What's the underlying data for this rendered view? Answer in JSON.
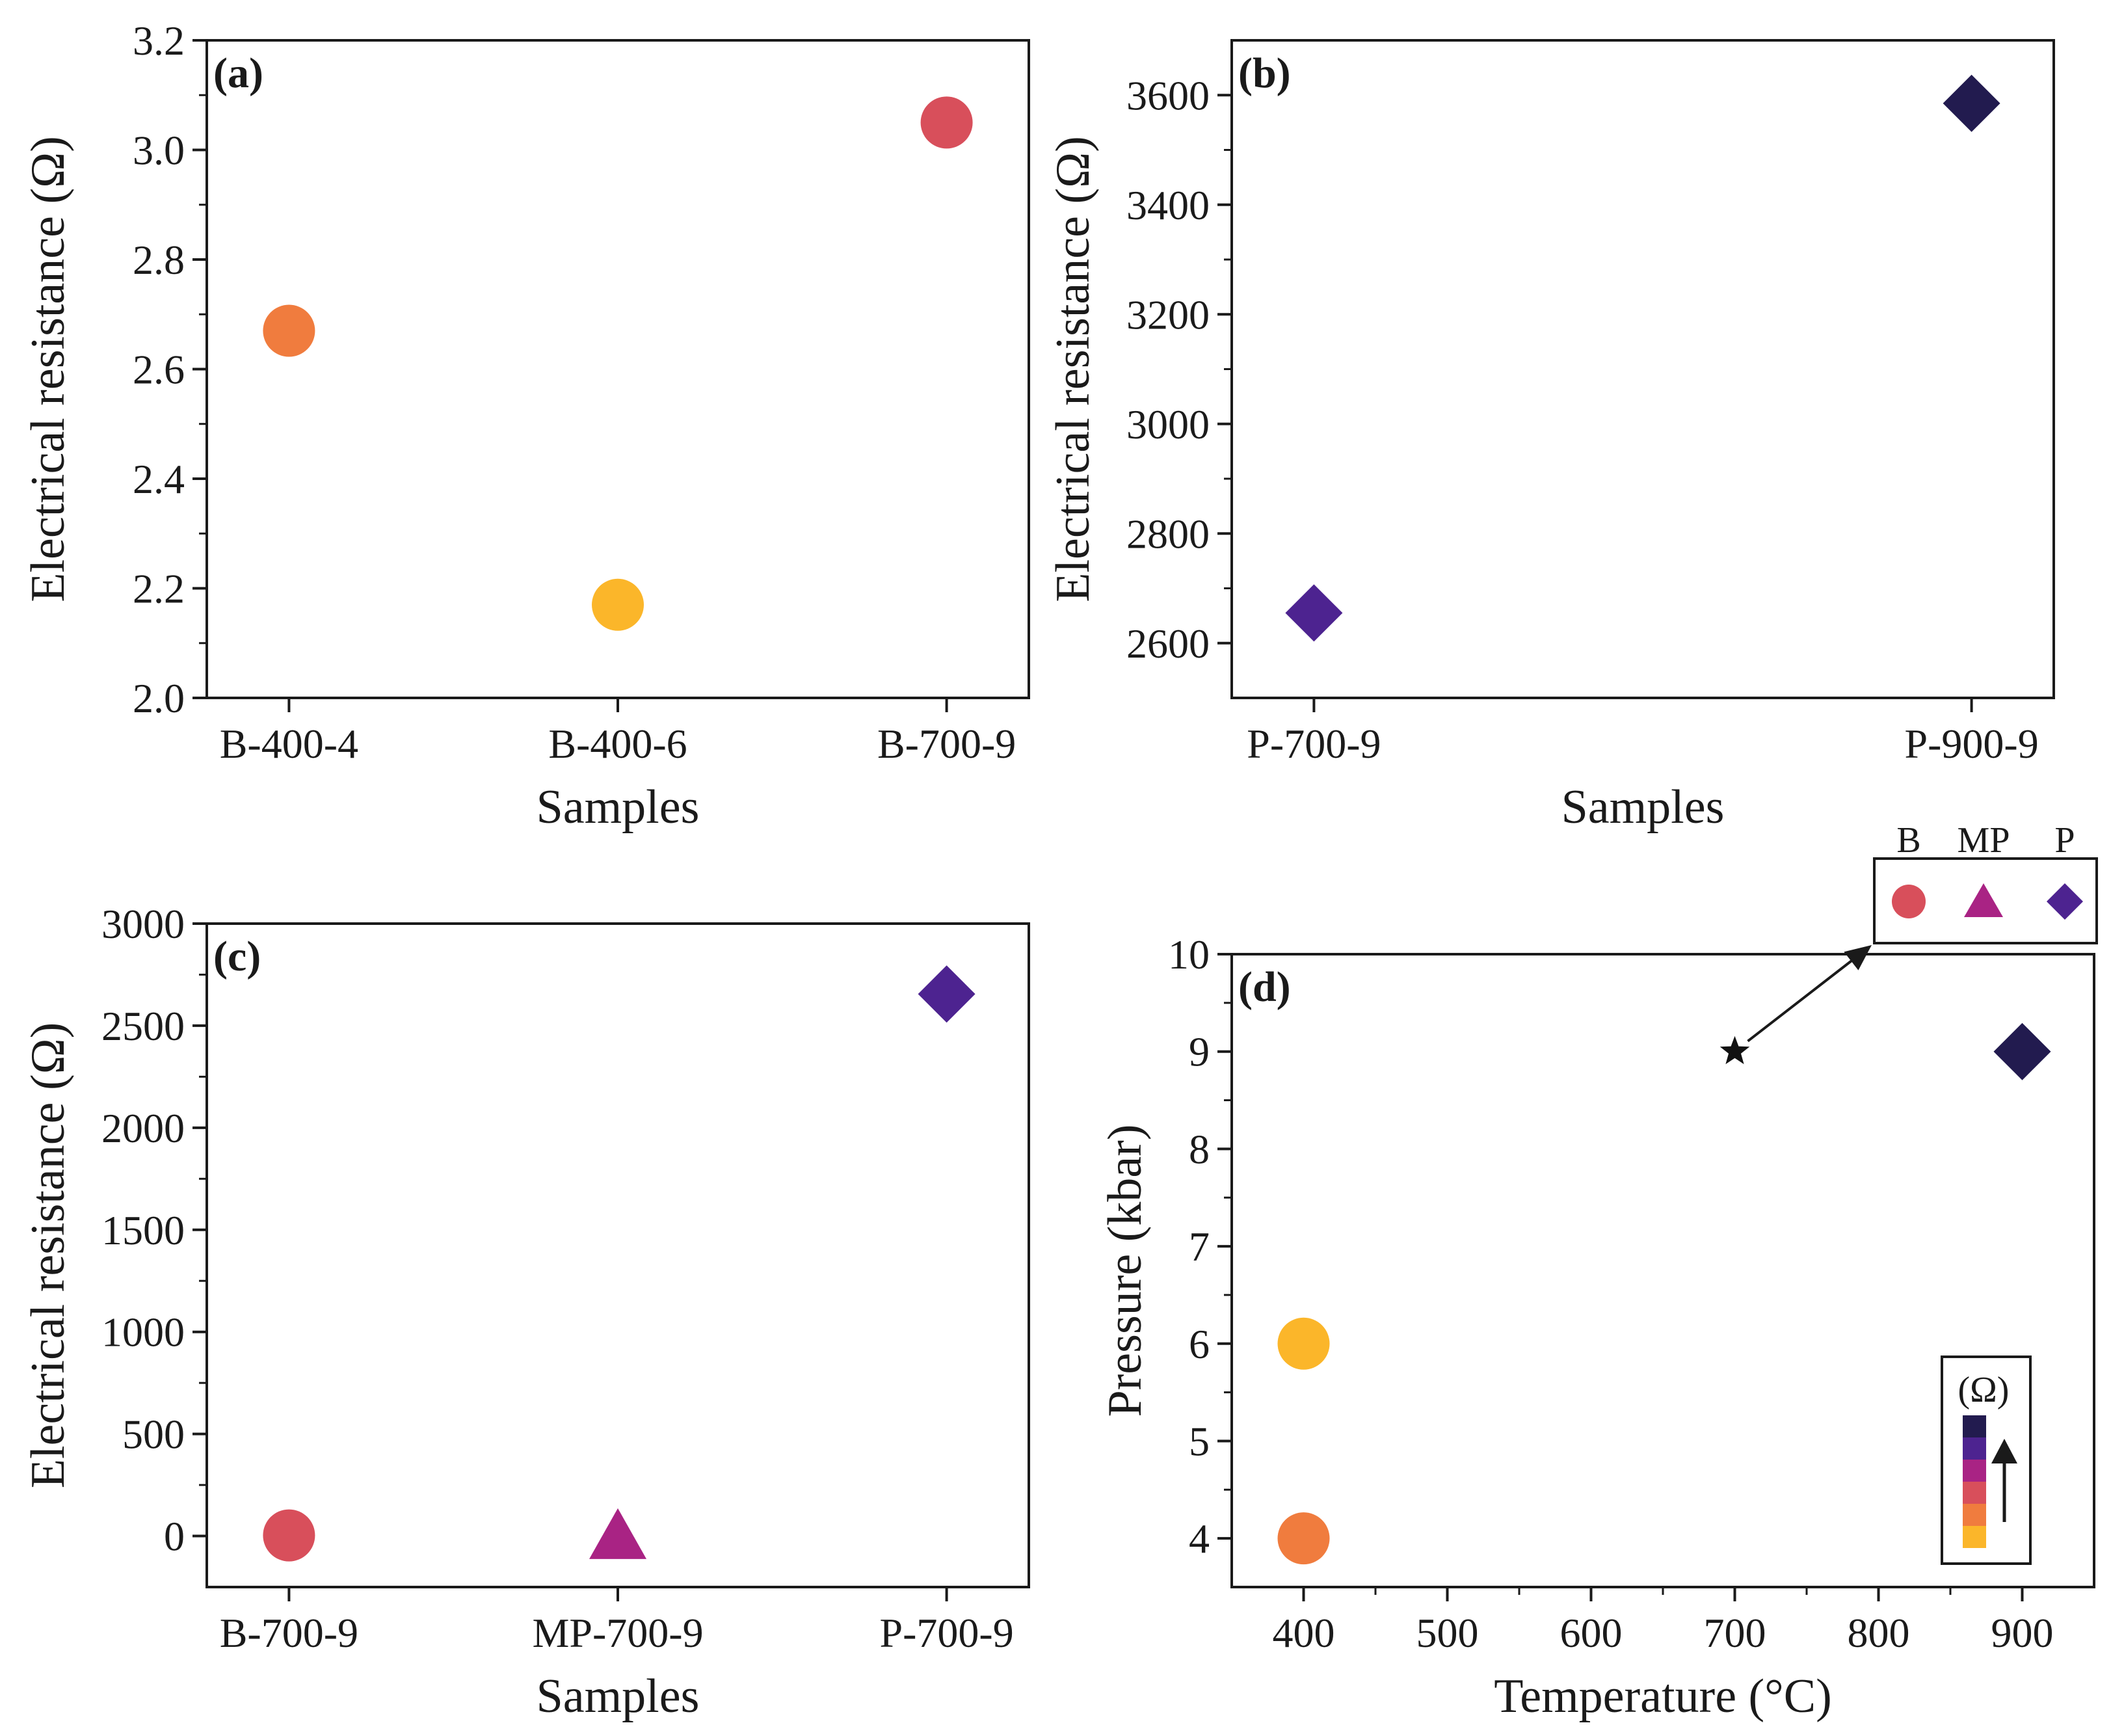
{
  "colors": {
    "B-400-4": "#f07c3e",
    "B-400-6": "#fbb62a",
    "B-700-9": "#d84f5b",
    "MP-700-9": "#a92384",
    "P-700-9": "#4d2390",
    "P-900-9": "#221b4f",
    "axis": "#1a1a1a",
    "star": "#111111"
  },
  "chart_data": [
    {
      "panel": "(a)",
      "type": "scatter",
      "categories": [
        "B-400-4",
        "B-400-6",
        "B-700-9"
      ],
      "values": [
        2.67,
        2.17,
        3.05
      ],
      "markers": [
        "circle",
        "circle",
        "circle"
      ],
      "xlabel": "Samples",
      "ylabel": "Electrical resistance (Ω)",
      "ylim": [
        2.0,
        3.2
      ],
      "yticks": [
        2.0,
        2.2,
        2.4,
        2.6,
        2.8,
        3.0,
        3.2
      ],
      "ytick_labels": [
        "2.0",
        "2.2",
        "2.4",
        "2.6",
        "2.8",
        "3.0",
        "3.2"
      ],
      "grid": false
    },
    {
      "panel": "(b)",
      "type": "scatter",
      "categories": [
        "P-700-9",
        "P-900-9"
      ],
      "values": [
        2655,
        3585
      ],
      "markers": [
        "diamond",
        "diamond"
      ],
      "xlabel": "Samples",
      "ylabel": "Electrical resistance (Ω)",
      "ylim": [
        2500,
        3700
      ],
      "yticks": [
        2600,
        2800,
        3000,
        3200,
        3400,
        3600
      ],
      "ytick_labels": [
        "2600",
        "2800",
        "3000",
        "3200",
        "3400",
        "3600"
      ],
      "grid": false
    },
    {
      "panel": "(c)",
      "type": "scatter",
      "categories": [
        "B-700-9",
        "MP-700-9",
        "P-700-9"
      ],
      "values": [
        3.05,
        2,
        2655
      ],
      "markers": [
        "circle",
        "triangle",
        "diamond"
      ],
      "xlabel": "Samples",
      "ylabel": "Electrical resistance (Ω)",
      "ylim": [
        -250,
        3000
      ],
      "yticks": [
        0,
        500,
        1000,
        1500,
        2000,
        2500,
        3000
      ],
      "ytick_labels": [
        "0",
        "500",
        "1000",
        "1500",
        "2000",
        "2500",
        "3000"
      ],
      "grid": false
    },
    {
      "panel": "(d)",
      "type": "scatter",
      "points": [
        {
          "sample": "B-400-4",
          "x": 400,
          "y": 4,
          "marker": "circle"
        },
        {
          "sample": "B-400-6",
          "x": 400,
          "y": 6,
          "marker": "circle"
        },
        {
          "sample": "P-900-9",
          "x": 900,
          "y": 9,
          "marker": "diamond"
        },
        {
          "sample": "B/MP/P-700-9",
          "x": 700,
          "y": 9,
          "marker": "star"
        }
      ],
      "xlabel": "Temperature (°C)",
      "ylabel": "Pressure (kbar)",
      "xlim": [
        350,
        950
      ],
      "ylim": [
        3.5,
        10
      ],
      "xticks": [
        400,
        500,
        600,
        700,
        800,
        900
      ],
      "xtick_labels": [
        "400",
        "500",
        "600",
        "700",
        "800",
        "900"
      ],
      "yticks": [
        4,
        5,
        6,
        7,
        8,
        9,
        10
      ],
      "ytick_labels": [
        "4",
        "5",
        "6",
        "7",
        "8",
        "9",
        "10"
      ],
      "legend": {
        "labels": [
          "B",
          "MP",
          "P"
        ],
        "markers": [
          "circle",
          "triangle",
          "diamond"
        ],
        "placement": "above top-right"
      },
      "colorbar": {
        "label": "(Ω)",
        "colors": [
          "#221b4f",
          "#4d2390",
          "#a92384",
          "#d84f5b",
          "#f07c3e",
          "#fbb62a"
        ],
        "placement": "bottom-right"
      },
      "grid": false
    }
  ]
}
